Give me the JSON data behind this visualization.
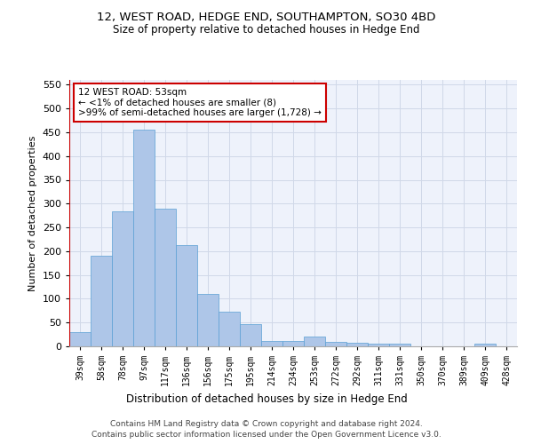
{
  "title": "12, WEST ROAD, HEDGE END, SOUTHAMPTON, SO30 4BD",
  "subtitle": "Size of property relative to detached houses in Hedge End",
  "xlabel": "Distribution of detached houses by size in Hedge End",
  "ylabel": "Number of detached properties",
  "categories": [
    "39sqm",
    "58sqm",
    "78sqm",
    "97sqm",
    "117sqm",
    "136sqm",
    "156sqm",
    "175sqm",
    "195sqm",
    "214sqm",
    "234sqm",
    "253sqm",
    "272sqm",
    "292sqm",
    "311sqm",
    "331sqm",
    "350sqm",
    "370sqm",
    "389sqm",
    "409sqm",
    "428sqm"
  ],
  "values": [
    30,
    190,
    283,
    456,
    290,
    213,
    110,
    73,
    46,
    12,
    12,
    20,
    10,
    8,
    5,
    5,
    0,
    0,
    0,
    5,
    0
  ],
  "bar_color": "#aec6e8",
  "bar_edge_color": "#5a9fd4",
  "highlight_color": "#cc0000",
  "ylim": [
    0,
    560
  ],
  "yticks": [
    0,
    50,
    100,
    150,
    200,
    250,
    300,
    350,
    400,
    450,
    500,
    550
  ],
  "annotation_text": "12 WEST ROAD: 53sqm\n← <1% of detached houses are smaller (8)\n>99% of semi-detached houses are larger (1,728) →",
  "annotation_box_color": "#ffffff",
  "annotation_box_edge_color": "#cc0000",
  "footer_line1": "Contains HM Land Registry data © Crown copyright and database right 2024.",
  "footer_line2": "Contains public sector information licensed under the Open Government Licence v3.0.",
  "grid_color": "#d0d8e8",
  "background_color": "#eef2fb"
}
